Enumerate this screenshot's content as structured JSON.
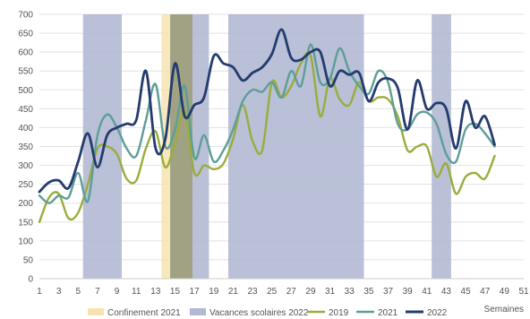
{
  "chart_data": {
    "type": "line",
    "title": "",
    "xlabel": "Semaines",
    "ylabel": "",
    "xlim": [
      1,
      51
    ],
    "ylim": [
      0,
      700
    ],
    "x_ticks": [
      1,
      3,
      5,
      7,
      9,
      11,
      13,
      15,
      17,
      19,
      21,
      23,
      25,
      27,
      29,
      31,
      33,
      35,
      37,
      39,
      41,
      43,
      45,
      47,
      49,
      51
    ],
    "y_ticks": [
      0,
      50,
      100,
      150,
      200,
      250,
      300,
      350,
      400,
      450,
      500,
      550,
      600,
      650,
      700
    ],
    "grid": "horizontal",
    "legend_position": "bottom",
    "colors": {
      "confinement": "#f6e3b0",
      "vacances": "#b1b9d3",
      "y2019": "#9aad3b",
      "y2021": "#5e9e98",
      "y2022": "#233b6e"
    },
    "bands": [
      {
        "label": "Confinement 2021",
        "start": 13.6,
        "end": 16.8
      },
      {
        "label": "Vacances scolaires 2022",
        "start": 5.5,
        "end": 9.5
      },
      {
        "label": "Vacances scolaires 2022",
        "start": 14.5,
        "end": 18.5
      },
      {
        "label": "Vacances scolaires 2022",
        "start": 20.5,
        "end": 34.5
      },
      {
        "label": "Vacances scolaires 2022",
        "start": 41.5,
        "end": 43.5
      }
    ],
    "series": [
      {
        "name": "2019",
        "x": [
          1,
          2,
          3,
          4,
          5,
          6,
          7,
          8,
          9,
          10,
          11,
          12,
          13,
          14,
          15,
          16,
          17,
          18,
          19,
          20,
          21,
          22,
          23,
          24,
          25,
          26,
          27,
          28,
          29,
          30,
          31,
          32,
          33,
          34,
          35,
          36,
          37,
          38,
          39,
          40,
          41,
          42,
          43,
          44,
          45,
          46,
          47,
          48
        ],
        "values": [
          150,
          215,
          225,
          160,
          175,
          250,
          345,
          350,
          330,
          265,
          260,
          345,
          390,
          295,
          360,
          445,
          280,
          300,
          290,
          305,
          370,
          460,
          365,
          340,
          520,
          480,
          510,
          570,
          590,
          430,
          530,
          475,
          460,
          520,
          470,
          480,
          475,
          430,
          340,
          350,
          350,
          270,
          305,
          225,
          270,
          280,
          265,
          325
        ]
      },
      {
        "name": "2021",
        "x": [
          1,
          2,
          3,
          4,
          5,
          6,
          7,
          8,
          9,
          10,
          11,
          12,
          13,
          14,
          15,
          16,
          17,
          18,
          19,
          20,
          21,
          22,
          23,
          24,
          25,
          26,
          27,
          28,
          29,
          30,
          31,
          32,
          33,
          34,
          35,
          36,
          37,
          38,
          39,
          40,
          41,
          42,
          43,
          44,
          45,
          46,
          47,
          48
        ],
        "values": [
          220,
          200,
          220,
          215,
          280,
          205,
          380,
          435,
          400,
          345,
          325,
          420,
          515,
          350,
          395,
          510,
          320,
          380,
          310,
          340,
          395,
          470,
          500,
          495,
          520,
          480,
          550,
          510,
          620,
          520,
          530,
          610,
          550,
          510,
          490,
          550,
          520,
          410,
          395,
          435,
          440,
          410,
          330,
          310,
          395,
          410,
          385,
          350
        ]
      },
      {
        "name": "2022",
        "x": [
          1,
          2,
          3,
          4,
          5,
          6,
          7,
          8,
          9,
          10,
          11,
          12,
          13,
          14,
          15,
          16,
          17,
          18,
          19,
          20,
          21,
          22,
          23,
          24,
          25,
          26,
          27,
          28,
          29,
          30,
          31,
          32,
          33,
          34,
          35,
          36,
          37,
          38,
          39,
          40,
          41,
          42,
          43,
          44,
          45,
          46,
          47,
          48
        ],
        "values": [
          230,
          255,
          260,
          240,
          310,
          385,
          295,
          380,
          400,
          410,
          420,
          550,
          345,
          370,
          570,
          430,
          460,
          480,
          590,
          570,
          560,
          525,
          545,
          560,
          595,
          660,
          585,
          580,
          600,
          600,
          510,
          550,
          540,
          545,
          470,
          520,
          530,
          505,
          395,
          525,
          450,
          465,
          450,
          345,
          470,
          400,
          430,
          355
        ]
      }
    ],
    "legend": [
      {
        "key": "confinement",
        "label": "Confinement 2021",
        "kind": "band"
      },
      {
        "key": "vacances",
        "label": "Vacances scolaires 2022",
        "kind": "band"
      },
      {
        "key": "y2019",
        "label": "2019",
        "kind": "line"
      },
      {
        "key": "y2021",
        "label": "2021",
        "kind": "line"
      },
      {
        "key": "y2022",
        "label": "2022",
        "kind": "line"
      }
    ]
  }
}
